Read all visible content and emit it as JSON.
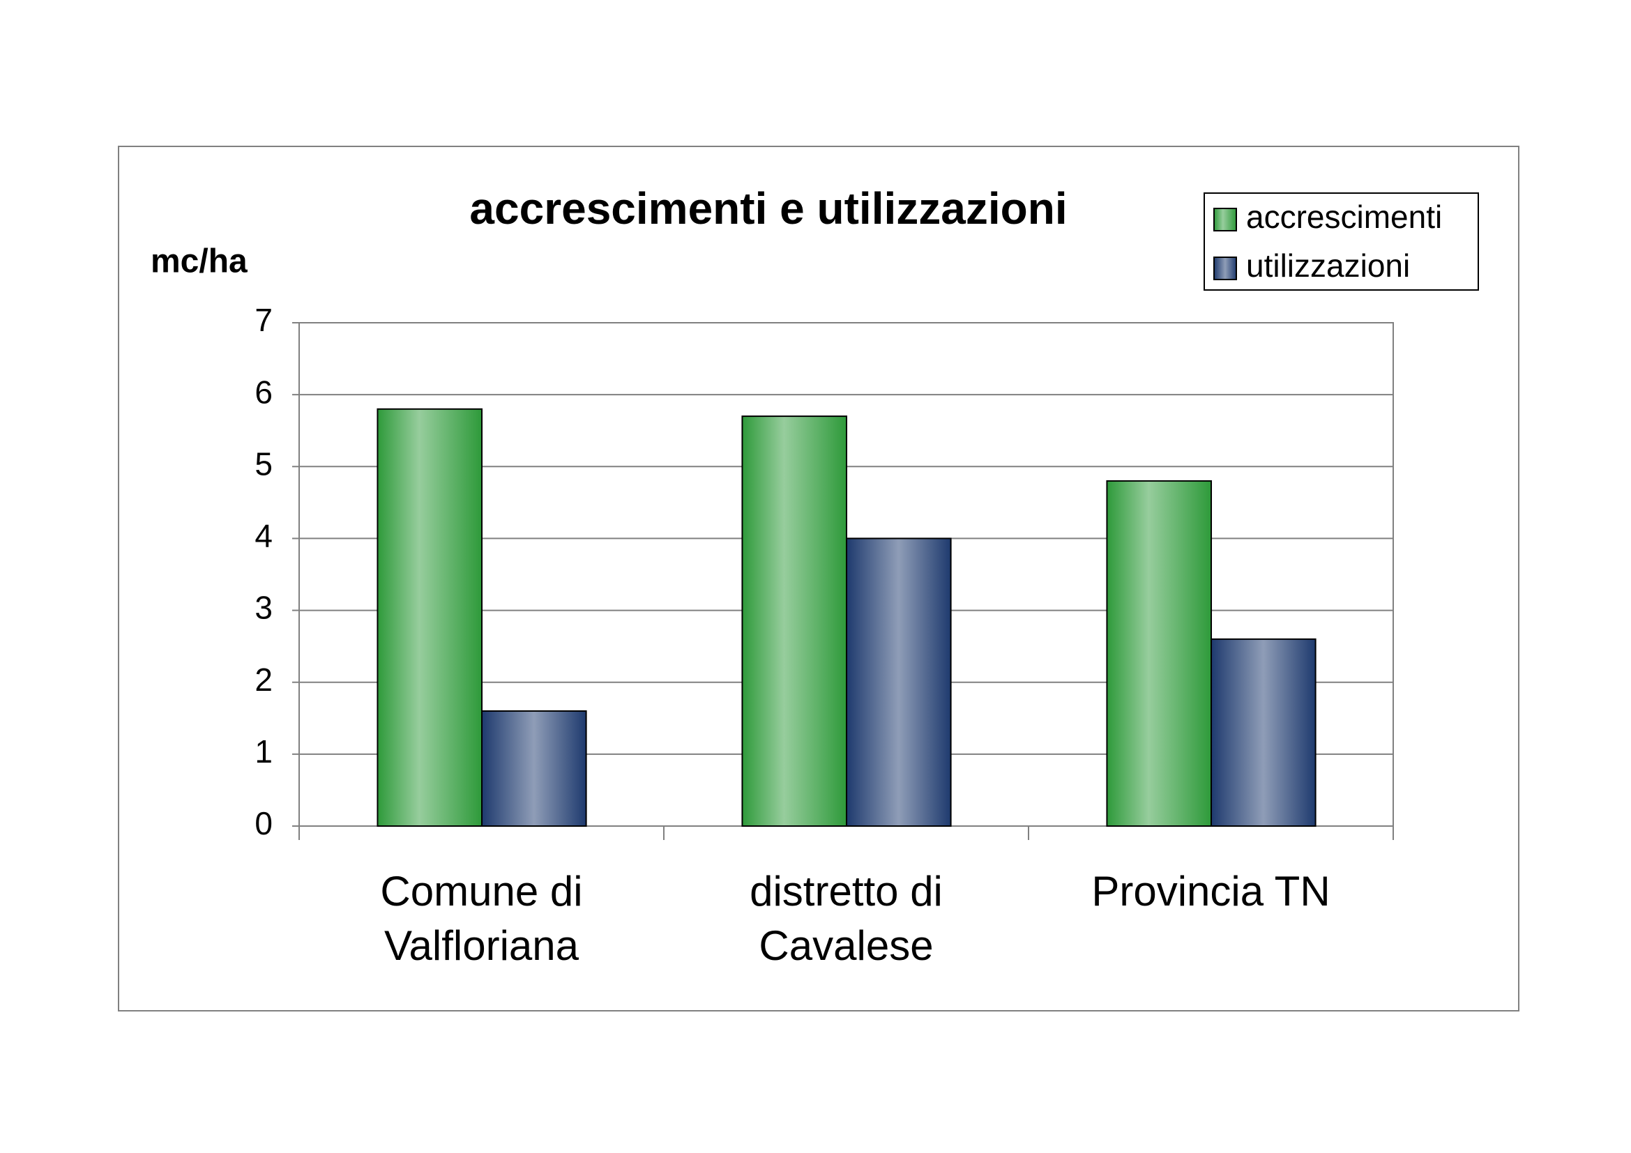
{
  "chart_data": {
    "type": "bar",
    "title": "accrescimenti e utilizzazioni",
    "y_label": "mc/ha",
    "categories": [
      "Comune di Valfloriana",
      "distretto di Cavalese",
      "Provincia TN"
    ],
    "series": [
      {
        "name": "accrescimenti",
        "color": "#2e9a3a",
        "values": [
          5.8,
          5.7,
          4.8
        ]
      },
      {
        "name": "utilizzazioni",
        "color": "#1e3a6e",
        "values": [
          1.6,
          4.0,
          2.6
        ]
      }
    ],
    "ylim": [
      0,
      7
    ],
    "yticks": [
      0,
      1,
      2,
      3,
      4,
      5,
      6,
      7
    ],
    "grid": true,
    "legend": "top-right"
  }
}
